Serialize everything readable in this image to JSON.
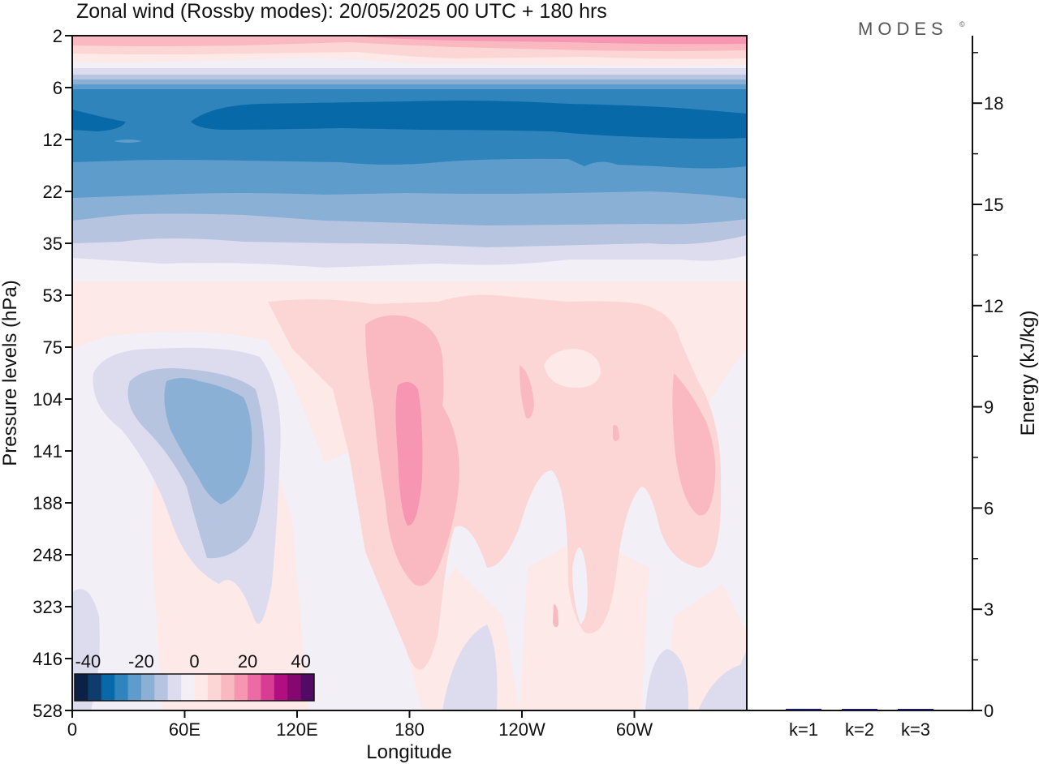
{
  "title": "Zonal wind (Rossby modes):  20/05/2025  00 UTC  + 180 hrs",
  "logo": "MODES",
  "logo_mark": "©",
  "colors": {
    "neg": [
      "#0c2244",
      "#0e3d6d",
      "#0869a8",
      "#2f84bc",
      "#5d9ccb",
      "#8ab0d6",
      "#b7c4e0",
      "#dcdcee",
      "#f2eff7"
    ],
    "pos": [
      "#fde9e7",
      "#fcd5d5",
      "#fab9c1",
      "#f796b2",
      "#ec6ba5",
      "#d73d93",
      "#b10f7f",
      "#850870",
      "#520a66"
    ]
  },
  "chart_data": [
    {
      "type": "heatmap",
      "title": "Zonal wind (Rossby modes):  20/05/2025  00 UTC  + 180 hrs",
      "xlabel": "Longitude",
      "ylabel": "Pressure levels (hPa)",
      "x_ticks": [
        "0",
        "60E",
        "120E",
        "180",
        "120W",
        "60W"
      ],
      "y_ticks": [
        "2",
        "6",
        "12",
        "22",
        "35",
        "53",
        "75",
        "104",
        "141",
        "188",
        "248",
        "323",
        "416",
        "528"
      ],
      "colorbar": {
        "ticks": [
          "-40",
          "-20",
          "0",
          "20",
          "40"
        ],
        "range": [
          -40,
          40
        ],
        "step": 5
      },
      "features": [
        {
          "desc": "easterly band",
          "level_range_hPa": [
            6,
            22
          ],
          "value_min": -35
        },
        {
          "desc": "easterly band",
          "level_range_hPa": [
            22,
            35
          ],
          "value_min": -15
        },
        {
          "desc": "westerly near top",
          "level_hPa": 2,
          "value_max": 20
        },
        {
          "desc": "negative lobe",
          "lon_range_deg": [
            30,
            110
          ],
          "level_range_hPa": [
            75,
            323
          ],
          "value_min": -15
        },
        {
          "desc": "positive maximum",
          "lon_deg": 180,
          "level_range_hPa": [
            104,
            188
          ],
          "value_max": 20
        },
        {
          "desc": "positive maximum",
          "lon_deg": 315,
          "level_range_hPa": [
            104,
            188
          ],
          "value_max": 15
        }
      ]
    },
    {
      "type": "bar",
      "categories": [
        "k=1",
        "k=2",
        "k=3"
      ],
      "values": [
        0.05,
        0.02,
        0.02
      ],
      "ylabel": "Energy (kJ/kg)",
      "y_ticks": [
        "0",
        "3",
        "6",
        "9",
        "12",
        "15",
        "18"
      ],
      "ylim": [
        0,
        20
      ],
      "bar_color": "#1a1a5e"
    }
  ]
}
